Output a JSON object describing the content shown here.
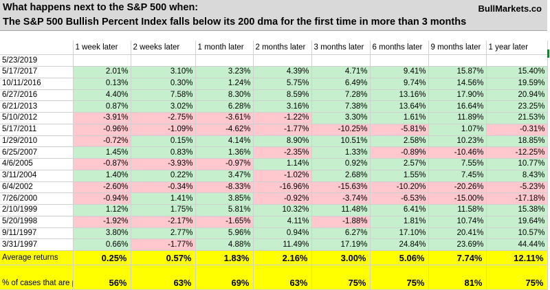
{
  "title": {
    "line1": "What happens next to the S&P 500 when:",
    "line2": "The S&P 500 Bullish Percent Index falls below its 200 dma for the first time in more than 3 months",
    "brand": "BullMarkets.co"
  },
  "columns": [
    "",
    "1 week later",
    "2 weeks later",
    "1 month later",
    "2 months later",
    "3 months later",
    "6 months later",
    "9 months later",
    "1 year later"
  ],
  "current_date": "5/23/2019",
  "rows": [
    {
      "date": "5/17/2017",
      "values": [
        "2.01%",
        "3.10%",
        "3.23%",
        "4.39%",
        "4.71%",
        "9.41%",
        "15.87%",
        "15.40%"
      ]
    },
    {
      "date": "10/11/2016",
      "values": [
        "0.13%",
        "0.30%",
        "1.24%",
        "5.75%",
        "6.49%",
        "9.74%",
        "14.56%",
        "19.59%"
      ]
    },
    {
      "date": "6/27/2016",
      "values": [
        "4.40%",
        "7.58%",
        "8.30%",
        "8.59%",
        "7.28%",
        "13.16%",
        "17.90%",
        "20.94%"
      ]
    },
    {
      "date": "6/21/2013",
      "values": [
        "0.87%",
        "3.02%",
        "6.28%",
        "3.16%",
        "7.38%",
        "13.64%",
        "16.64%",
        "23.25%"
      ]
    },
    {
      "date": "5/10/2012",
      "values": [
        "-3.91%",
        "-2.75%",
        "-3.61%",
        "-1.22%",
        "3.30%",
        "1.61%",
        "11.89%",
        "21.53%"
      ]
    },
    {
      "date": "5/17/2011",
      "values": [
        "-0.96%",
        "-1.09%",
        "-4.62%",
        "-1.77%",
        "-10.25%",
        "-5.81%",
        "1.07%",
        "-0.31%"
      ]
    },
    {
      "date": "1/29/2010",
      "values": [
        "-0.72%",
        "0.15%",
        "4.14%",
        "8.90%",
        "10.51%",
        "2.58%",
        "10.23%",
        "18.85%"
      ]
    },
    {
      "date": "6/25/2007",
      "values": [
        "1.45%",
        "0.83%",
        "1.36%",
        "-2.35%",
        "1.33%",
        "-0.89%",
        "-10.46%",
        "-12.25%"
      ]
    },
    {
      "date": "4/6/2005",
      "values": [
        "-0.87%",
        "-3.93%",
        "-0.97%",
        "1.14%",
        "0.92%",
        "2.57%",
        "7.55%",
        "10.77%"
      ]
    },
    {
      "date": "3/11/2004",
      "values": [
        "1.40%",
        "0.22%",
        "3.47%",
        "-1.02%",
        "2.68%",
        "1.55%",
        "7.45%",
        "8.43%"
      ]
    },
    {
      "date": "6/4/2002",
      "values": [
        "-2.60%",
        "-0.34%",
        "-8.33%",
        "-16.96%",
        "-15.63%",
        "-10.20%",
        "-20.26%",
        "-5.23%"
      ]
    },
    {
      "date": "7/26/2000",
      "values": [
        "-0.94%",
        "1.41%",
        "3.85%",
        "-0.92%",
        "-3.74%",
        "-6.53%",
        "-15.00%",
        "-17.18%"
      ]
    },
    {
      "date": "2/10/1999",
      "values": [
        "1.12%",
        "1.75%",
        "5.81%",
        "10.32%",
        "11.48%",
        "6.41%",
        "11.58%",
        "15.38%"
      ]
    },
    {
      "date": "5/20/1998",
      "values": [
        "-1.92%",
        "-2.17%",
        "-1.65%",
        "4.11%",
        "-1.88%",
        "1.81%",
        "10.74%",
        "19.64%"
      ]
    },
    {
      "date": "9/11/1997",
      "values": [
        "3.80%",
        "2.77%",
        "5.96%",
        "0.94%",
        "6.27%",
        "17.10%",
        "20.41%",
        "10.57%"
      ]
    },
    {
      "date": "3/31/1997",
      "values": [
        "0.66%",
        "-1.77%",
        "4.88%",
        "11.49%",
        "17.19%",
        "24.84%",
        "23.69%",
        "44.44%"
      ]
    }
  ],
  "summary": {
    "average_label": "Average returns",
    "average_values": [
      "0.25%",
      "0.57%",
      "1.83%",
      "2.16%",
      "3.00%",
      "5.06%",
      "7.74%",
      "12.11%"
    ],
    "positive_label": "% of cases that are positive",
    "positive_values": [
      "56%",
      "63%",
      "69%",
      "63%",
      "75%",
      "75%",
      "81%",
      "75%"
    ]
  },
  "colors": {
    "positive_fill": "#c6efce",
    "negative_fill": "#ffc7ce",
    "summary_fill": "#ffff00",
    "title_fill": "#d9d9d9"
  }
}
